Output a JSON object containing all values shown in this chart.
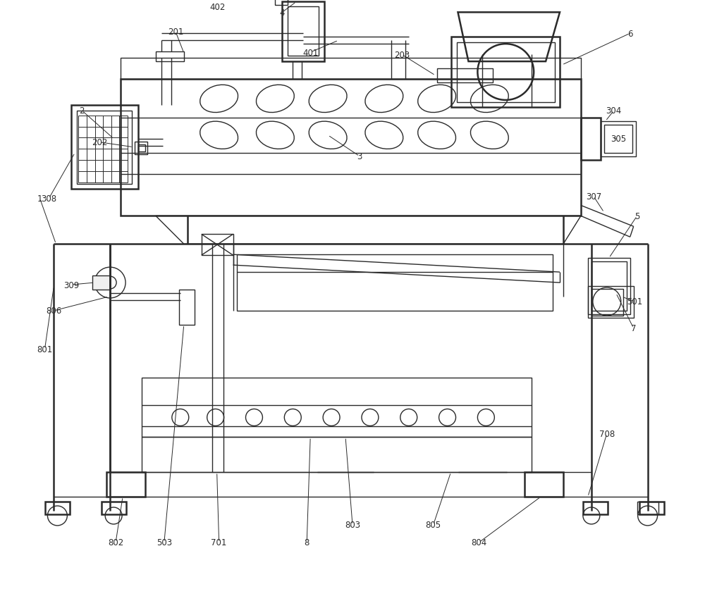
{
  "bg_color": "#ffffff",
  "line_color": "#2a2a2a",
  "lw": 1.0,
  "lw_thick": 1.8,
  "lw_thin": 0.7,
  "label_fontsize": 8.5
}
